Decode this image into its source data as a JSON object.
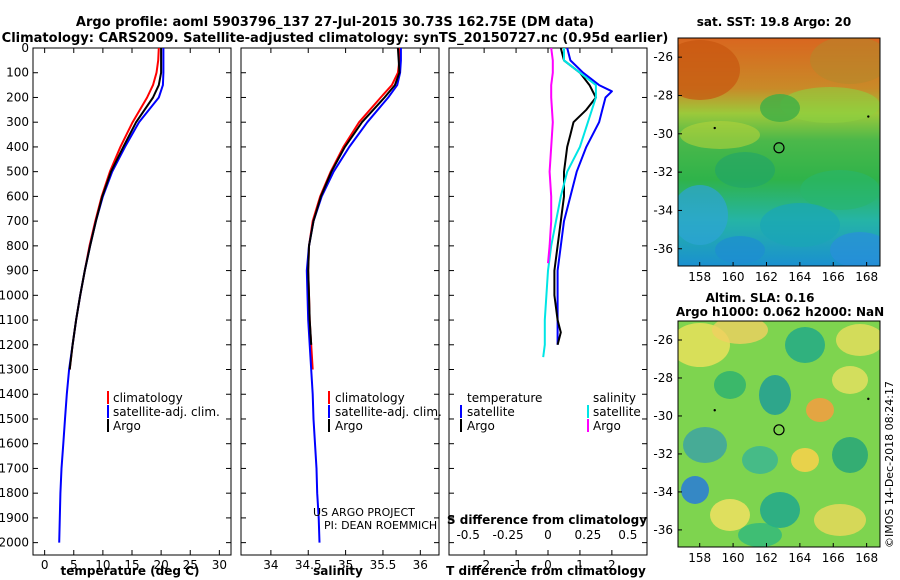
{
  "title": {
    "line1": "Argo profile: aoml 5903796_137 27-Jul-2015 30.73S 162.75E (DM data)",
    "line2": "Climatology: CARS2009. Satellite-adjusted climatology: synTS_20150727.nc (0.95d earlier)"
  },
  "colors": {
    "climatology": "#ff0000",
    "satellite": "#0000ff",
    "argo": "#000000",
    "sat_salinity": "#00e5e5",
    "argo_salinity": "#ff00ff"
  },
  "depth_ticks": [
    "0",
    "100",
    "200",
    "300",
    "400",
    "500",
    "600",
    "700",
    "800",
    "900",
    "1000",
    "1100",
    "1200",
    "1300",
    "1400",
    "1500",
    "1600",
    "1700",
    "1800",
    "1900",
    "2000"
  ],
  "credit": {
    "line1": "US ARGO PROJECT",
    "line2": "PI: DEAN ROEMMICH"
  },
  "timestamp": "©IMOS 14-Dec-2018 08:24:17",
  "chart_data": [
    {
      "type": "line",
      "name": "temperature",
      "xlabel": "temperature (deg C)",
      "ylabel": "depth",
      "xlim": [
        -2,
        32
      ],
      "ylim": [
        2050,
        0
      ],
      "xticks": [
        "0",
        "5",
        "10",
        "15",
        "20",
        "25",
        "30"
      ],
      "legend": [
        "climatology",
        "satellite-adj. clim.",
        "Argo"
      ],
      "series": [
        {
          "name": "climatology",
          "depth": [
            0,
            50,
            100,
            150,
            200,
            300,
            400,
            500,
            600,
            700,
            800,
            900,
            1000,
            1100,
            1200,
            1300
          ],
          "values": [
            19.6,
            19.5,
            19.2,
            18.6,
            17.6,
            15.1,
            13.0,
            11.2,
            9.8,
            8.7,
            7.7,
            6.9,
            6.1,
            5.4,
            4.8,
            4.3
          ]
        },
        {
          "name": "satellite",
          "depth": [
            0,
            50,
            100,
            150,
            200,
            300,
            400,
            500,
            600,
            700,
            800,
            900,
            1000,
            1100,
            1200,
            1300,
            1400,
            1500,
            1600,
            1700,
            1800,
            1900,
            2000
          ],
          "values": [
            20.4,
            20.4,
            20.4,
            20.3,
            19.6,
            16.2,
            13.8,
            11.6,
            10.0,
            8.8,
            7.8,
            6.9,
            6.1,
            5.4,
            4.8,
            4.2,
            3.8,
            3.5,
            3.2,
            2.9,
            2.7,
            2.6,
            2.5
          ]
        },
        {
          "name": "Argo",
          "depth": [
            0,
            50,
            100,
            150,
            200,
            300,
            400,
            500,
            600,
            700,
            800,
            900,
            1000,
            1100,
            1200,
            1300
          ],
          "values": [
            20.0,
            20.0,
            20.0,
            19.6,
            18.6,
            15.7,
            13.5,
            11.4,
            9.9,
            8.8,
            7.8,
            6.9,
            6.1,
            5.4,
            4.8,
            4.3
          ]
        }
      ]
    },
    {
      "type": "line",
      "name": "salinity",
      "xlabel": "salinity",
      "ylabel": "depth",
      "xlim": [
        33.6,
        36.25
      ],
      "ylim": [
        2050,
        0
      ],
      "xticks": [
        "34",
        "34.5",
        "35",
        "35.5",
        "36"
      ],
      "legend": [
        "climatology",
        "satellite-adj. clim.",
        "Argo"
      ],
      "series": [
        {
          "name": "climatology",
          "depth": [
            0,
            50,
            100,
            150,
            200,
            300,
            400,
            500,
            600,
            700,
            800,
            900,
            1000,
            1100,
            1200,
            1300
          ],
          "values": [
            35.72,
            35.72,
            35.7,
            35.62,
            35.47,
            35.18,
            34.97,
            34.8,
            34.66,
            34.56,
            34.51,
            34.5,
            34.51,
            34.52,
            34.54,
            34.56
          ]
        },
        {
          "name": "satellite",
          "depth": [
            0,
            50,
            100,
            150,
            200,
            300,
            400,
            500,
            600,
            700,
            800,
            900,
            1000,
            1100,
            1200,
            1300,
            1400,
            1500,
            1600,
            1700,
            1800,
            1900,
            2000
          ],
          "values": [
            35.74,
            35.74,
            35.73,
            35.69,
            35.57,
            35.29,
            35.05,
            34.84,
            34.68,
            34.57,
            34.51,
            34.48,
            34.49,
            34.5,
            34.52,
            34.54,
            34.56,
            34.57,
            34.59,
            34.61,
            34.62,
            34.64,
            34.65
          ]
        },
        {
          "name": "Argo",
          "depth": [
            0,
            50,
            100,
            150,
            200,
            300,
            400,
            500,
            600,
            700,
            800,
            900,
            1000,
            1100,
            1200
          ],
          "values": [
            35.7,
            35.71,
            35.72,
            35.66,
            35.52,
            35.22,
            34.99,
            34.81,
            34.67,
            34.57,
            34.51,
            34.5,
            34.51,
            34.52,
            34.54
          ]
        }
      ]
    },
    {
      "type": "line",
      "name": "differences",
      "xlabel": "T difference from climatology",
      "xlabel_top": "S difference from climatology",
      "xlim": [
        -3.1,
        3.1
      ],
      "ylim": [
        2050,
        0
      ],
      "xticks": [
        "-2",
        "-1",
        "0",
        "1",
        "2"
      ],
      "s_xticks": [
        "-0.5",
        "-0.25",
        "0",
        "0.25",
        "0.5"
      ],
      "legend_temperature": {
        "heading": "temperature",
        "items": [
          "satellite",
          "Argo"
        ]
      },
      "legend_salinity": {
        "heading": "salinity",
        "items": [
          "satellite",
          "Argo"
        ]
      },
      "series": [
        {
          "name": "T satellite",
          "depth": [
            0,
            50,
            100,
            150,
            175,
            200,
            250,
            300,
            400,
            500,
            600,
            700,
            800,
            900,
            1000,
            1100,
            1150,
            1200
          ],
          "values": [
            0.6,
            0.7,
            1.1,
            1.6,
            2.0,
            1.8,
            1.7,
            1.6,
            1.2,
            0.9,
            0.7,
            0.5,
            0.4,
            0.3,
            0.3,
            0.3,
            0.3,
            0.3
          ]
        },
        {
          "name": "T Argo",
          "depth": [
            0,
            50,
            100,
            150,
            200,
            250,
            300,
            350,
            400,
            500,
            600,
            700,
            800,
            900,
            1000,
            1100,
            1150,
            1200
          ],
          "values": [
            0.4,
            0.5,
            1.0,
            1.3,
            1.5,
            1.2,
            0.8,
            0.7,
            0.6,
            0.5,
            0.5,
            0.4,
            0.3,
            0.2,
            0.2,
            0.3,
            0.4,
            0.3
          ]
        },
        {
          "name": "S satellite",
          "depth": [
            0,
            50,
            100,
            150,
            200,
            300,
            400,
            500,
            600,
            700,
            800,
            900,
            1000,
            1100,
            1200,
            1250
          ],
          "values": [
            0.1,
            0.1,
            0.2,
            0.3,
            0.3,
            0.25,
            0.2,
            0.12,
            0.08,
            0.05,
            0.02,
            0.0,
            -0.01,
            -0.02,
            -0.02,
            -0.03
          ]
        },
        {
          "name": "S Argo",
          "depth": [
            0,
            50,
            100,
            150,
            200,
            300,
            400,
            500,
            600,
            700,
            800,
            870
          ],
          "values": [
            0.02,
            0.03,
            0.03,
            0.02,
            0.02,
            0.03,
            0.02,
            0.01,
            0.02,
            0.02,
            0.01,
            0.0
          ]
        }
      ]
    },
    {
      "type": "heatmap",
      "name": "sst-map",
      "title": "sat. SST: 19.8 Argo: 20",
      "xticks": [
        "158",
        "160",
        "162",
        "164",
        "166",
        "168"
      ],
      "yticks": [
        "-26",
        "-28",
        "-30",
        "-32",
        "-34",
        "-36"
      ],
      "xlim": [
        156.7,
        168.8
      ],
      "ylim": [
        -36.9,
        -25.0
      ],
      "marker": {
        "lon": 162.75,
        "lat": -30.73
      }
    },
    {
      "type": "heatmap",
      "name": "sla-map",
      "title": "Altim. SLA: 0.16",
      "subtitle": "Argo h1000: 0.062 h2000: NaN",
      "xticks": [
        "158",
        "160",
        "162",
        "164",
        "166",
        "168"
      ],
      "yticks": [
        "-26",
        "-28",
        "-30",
        "-32",
        "-34",
        "-36"
      ],
      "xlim": [
        156.7,
        168.8
      ],
      "ylim": [
        -36.9,
        -25.0
      ],
      "marker": {
        "lon": 162.75,
        "lat": -30.73
      }
    }
  ]
}
